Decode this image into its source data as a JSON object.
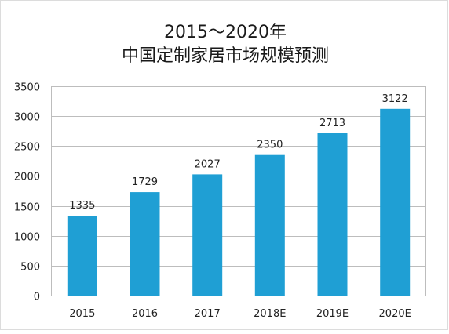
{
  "chart_data": {
    "type": "bar",
    "title_lines": [
      "2015～2020年",
      "中国定制家居市场规模预测"
    ],
    "categories": [
      "2015",
      "2016",
      "2017",
      "2018E",
      "2019E",
      "2020E"
    ],
    "values": [
      1335,
      1729,
      2027,
      2350,
      2713,
      3122
    ],
    "data_labels": [
      "1335",
      "1729",
      "2027",
      "2350",
      "2713",
      "3122"
    ],
    "ylim": [
      0,
      3500
    ],
    "yticks": [
      0,
      500,
      1000,
      1500,
      2000,
      2500,
      3000,
      3500
    ],
    "ytick_labels": [
      "0",
      "500",
      "1000",
      "1500",
      "2000",
      "2500",
      "3000",
      "3500"
    ],
    "xlabel": "",
    "ylabel": "",
    "grid": true,
    "bar_color": "#1f9fd4"
  }
}
